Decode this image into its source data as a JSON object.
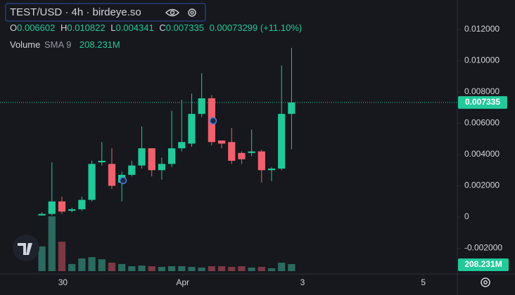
{
  "chart_data": {
    "type": "candlestick",
    "title": "TEST/USD · 4h · birdeye.so",
    "ohlc_letters": [
      "O",
      "H",
      "L",
      "C"
    ],
    "change": "0.00073299 (+11.10%)",
    "volume_title": "Volume",
    "volume_indicator": "SMA 9",
    "last_volume_label": "208.231M",
    "up_color": "#22c99a",
    "down_color": "#f0616d",
    "volume_up_color": "#2b6a5f",
    "volume_down_color": "#7a3943",
    "x": [
      0,
      1,
      2,
      3,
      4,
      5,
      6,
      7,
      8,
      9,
      10,
      11,
      12,
      13,
      14,
      15,
      16,
      17,
      18,
      19,
      20,
      21,
      22,
      23,
      24,
      25
    ],
    "open": [
      0.0001,
      0.0002,
      0.001,
      0.0004,
      0.0005,
      0.0011,
      0.0035,
      0.0034,
      0.0022,
      0.0027,
      0.0033,
      0.0044,
      0.003,
      0.0034,
      0.0044,
      0.0047,
      0.0066,
      0.0076,
      0.0049,
      0.0048,
      0.0041,
      0.0041,
      0.0042,
      0.003,
      0.0031,
      0.006602
    ],
    "high": [
      0.0003,
      0.0035,
      0.0013,
      0.0006,
      0.0013,
      0.0036,
      0.0048,
      0.0044,
      0.0029,
      0.0036,
      0.0058,
      0.0044,
      0.0038,
      0.0068,
      0.0075,
      0.0079,
      0.0092,
      0.0078,
      0.0049,
      0.0057,
      0.0042,
      0.0056,
      0.0043,
      0.0032,
      0.0097,
      0.010822
    ],
    "low": [
      0.0001,
      0.0001,
      0.0002,
      0.0003,
      0.0004,
      0.001,
      0.0033,
      0.0018,
      0.001,
      0.0026,
      0.0031,
      0.0026,
      0.0024,
      0.0032,
      0.0042,
      0.0045,
      0.0064,
      0.0046,
      0.0044,
      0.0034,
      0.0034,
      0.0039,
      0.0022,
      0.0023,
      0.003,
      0.004341
    ],
    "close": [
      0.0002,
      0.001,
      0.00035,
      0.0005,
      0.0011,
      0.0034,
      0.0036,
      0.002,
      0.0027,
      0.0033,
      0.0044,
      0.003,
      0.0034,
      0.0044,
      0.0048,
      0.0066,
      0.0076,
      0.0048,
      0.0047,
      0.0036,
      0.0037,
      0.0042,
      0.003,
      0.0031,
      0.0066,
      0.007335
    ],
    "volume": [
      730,
      1620,
      870,
      210,
      375,
      415,
      350,
      250,
      210,
      145,
      165,
      145,
      125,
      145,
      145,
      125,
      105,
      145,
      145,
      125,
      145,
      105,
      125,
      85,
      250,
      208.231
    ],
    "xlim": [
      -4.2,
      41.6
    ],
    "xticks": [
      {
        "value": 2.1,
        "label": "30"
      },
      {
        "value": 14.1,
        "label": "Apr"
      },
      {
        "value": 26.1,
        "label": "3"
      },
      {
        "value": 38.2,
        "label": "5"
      }
    ],
    "ylim": [
      -0.00364,
      0.01389
    ],
    "yticks": [
      {
        "value": 0.012,
        "label": "0.012000"
      },
      {
        "value": 0.01,
        "label": "0.010000"
      },
      {
        "value": 0.008,
        "label": "0.008000"
      },
      {
        "value": 0.006,
        "label": "0.006000"
      },
      {
        "value": 0.004,
        "label": "0.004000"
      },
      {
        "value": 0.002,
        "label": "0.002000"
      },
      0,
      {
        "value": -0.002,
        "label": "-0.002000"
      }
    ],
    "grid": false
  }
}
